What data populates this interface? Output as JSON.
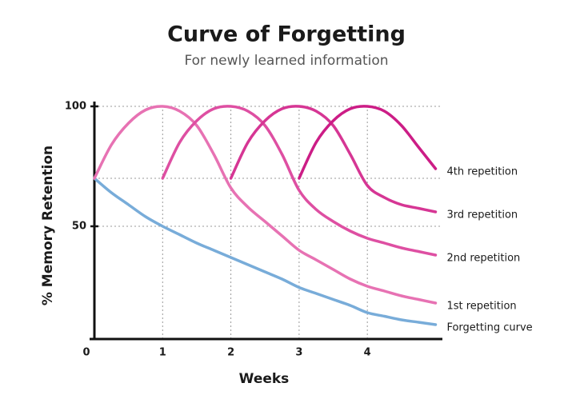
{
  "chart_data": {
    "type": "line",
    "title": "Curve of Forgetting",
    "subtitle": "For newly learned information",
    "x_label": "Weeks",
    "y_label": "% Memory Retention",
    "x": [
      0,
      0.25,
      0.5,
      0.75,
      1,
      1.25,
      1.5,
      1.75,
      2,
      2.25,
      2.5,
      2.75,
      3,
      3.25,
      3.5,
      3.75,
      4,
      4.25,
      4.5,
      4.75,
      5
    ],
    "series": [
      {
        "name": "Forgetting curve",
        "color": "#78acd9",
        "values": [
          70,
          64,
          59,
          54,
          50,
          46.5,
          43,
          40,
          37,
          34,
          31,
          28,
          24.5,
          22,
          19.5,
          17,
          14,
          12.5,
          11,
          10,
          9
        ]
      },
      {
        "name": "1st repetition",
        "color": "#e772b3",
        "values": [
          70,
          84,
          93,
          98.5,
          100,
          98,
          92,
          80,
          66,
          58,
          52,
          46,
          40,
          36,
          32,
          28,
          25,
          23,
          21,
          19.5,
          18
        ]
      },
      {
        "name": "2nd repetition",
        "color": "#de4fa2",
        "values": [
          null,
          null,
          null,
          null,
          70,
          85,
          94,
          99,
          100,
          98,
          92,
          80,
          65,
          57,
          52,
          48,
          45,
          43,
          41,
          39.5,
          38
        ]
      },
      {
        "name": "3rd repetition",
        "color": "#d63694",
        "values": [
          null,
          null,
          null,
          null,
          null,
          null,
          null,
          null,
          70,
          85,
          94,
          99,
          100,
          98,
          92,
          80,
          67,
          62,
          59,
          57.5,
          56
        ]
      },
      {
        "name": "4th repetition",
        "color": "#cc1d86",
        "values": [
          null,
          null,
          null,
          null,
          null,
          null,
          null,
          null,
          null,
          null,
          null,
          null,
          70,
          85,
          94,
          99,
          100,
          98,
          92,
          83,
          74
        ]
      }
    ],
    "xlim": [
      0,
      5.1
    ],
    "ylim": [
      3,
      102
    ],
    "xticks": [
      0,
      1,
      2,
      3,
      4
    ],
    "yticks": [
      50,
      100
    ],
    "reference_lines": [
      70
    ]
  }
}
